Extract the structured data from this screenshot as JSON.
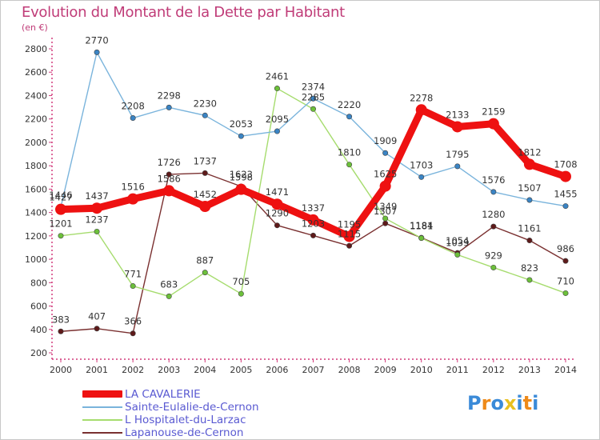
{
  "header": {
    "title": "Evolution du Montant de la Dette par Habitant",
    "unit": "(en €)"
  },
  "chart_data": {
    "type": "line",
    "title": "Evolution du Montant de la Dette par Habitant",
    "ylabel": "(en €)",
    "xlabel": "",
    "ylim": [
      200,
      2800
    ],
    "ytick_step": 200,
    "grid": false,
    "legend_position": "bottom-left",
    "x": [
      "2000",
      "2001",
      "2002",
      "2003",
      "2004",
      "2005",
      "2006",
      "2007",
      "2008",
      "2009",
      "2010",
      "2011",
      "2012",
      "2013",
      "2014"
    ],
    "series": [
      {
        "name": "LA CAVALERIE",
        "color": "#ee1111",
        "marker_color": "#ee1111",
        "emphasis": true,
        "values": [
          1427,
          1437,
          1516,
          1586,
          1452,
          1598,
          1471,
          1337,
          1195,
          1625,
          2278,
          2133,
          2159,
          1812,
          1708
        ]
      },
      {
        "name": "Sainte-Eulalie-de-Cernon",
        "color": "#7ab4dc",
        "marker_color": "#3a84c4",
        "emphasis": false,
        "values": [
          1446,
          2770,
          2208,
          2298,
          2230,
          2053,
          2095,
          2374,
          2220,
          1909,
          1703,
          1795,
          1576,
          1507,
          1455
        ]
      },
      {
        "name": "L  Hospitalet-du-Larzac",
        "color": "#a6dc6e",
        "marker_color": "#6cc03a",
        "emphasis": false,
        "values": [
          1201,
          1237,
          771,
          683,
          887,
          705,
          2461,
          2285,
          1810,
          1349,
          1181,
          1039,
          929,
          823,
          710
        ]
      },
      {
        "name": "Lapanouse-de-Cernon",
        "color": "#7a3030",
        "marker_color": "#5e1a1a",
        "emphasis": false,
        "values": [
          383,
          407,
          366,
          1726,
          1737,
          1623,
          1290,
          1203,
          1115,
          1307,
          1184,
          1054,
          1280,
          1161,
          986
        ]
      }
    ]
  },
  "legend": {
    "items": [
      {
        "label": "LA CAVALERIE",
        "color": "#ee1111"
      },
      {
        "label": "Sainte-Eulalie-de-Cernon",
        "color": "#7ab4dc"
      },
      {
        "label": "L  Hospitalet-du-Larzac",
        "color": "#a6dc6e"
      },
      {
        "label": "Lapanouse-de-Cernon",
        "color": "#7a3030"
      }
    ]
  },
  "logo": {
    "text": "Proxiti",
    "colors": [
      "#3a8ad8",
      "#ee8a1a",
      "#3a8ad8",
      "#e8c020",
      "#3a8ad8",
      "#ee8a1a",
      "#3a8ad8"
    ]
  }
}
